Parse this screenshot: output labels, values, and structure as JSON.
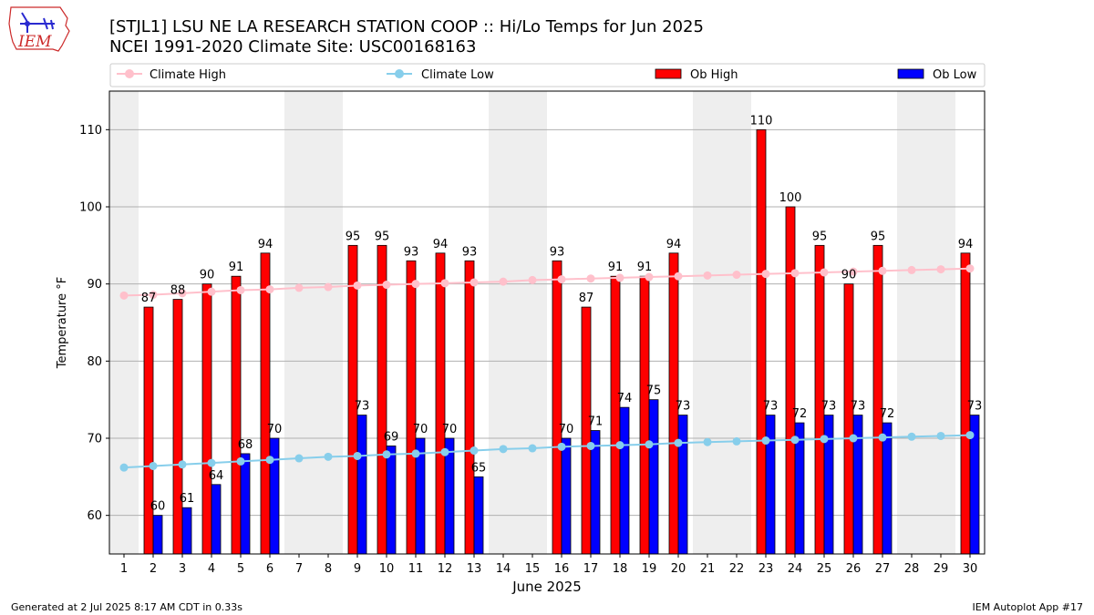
{
  "title": {
    "line1": "[STJL1] LSU NE LA RESEARCH STATION COOP :: Hi/Lo Temps for Jun 2025",
    "line2": "NCEI 1991-2020 Climate Site: USC00168163"
  },
  "logo": {
    "text": "IEM"
  },
  "footer": {
    "left": "Generated at 2 Jul 2025 8:17 AM CDT in 0.33s",
    "right": "IEM Autoplot App #17"
  },
  "colors": {
    "climate_high": "#ffc0cb",
    "climate_low": "#87ceeb",
    "ob_high": "#ff0000",
    "ob_low": "#0000ff",
    "weekend_band": "#eeeeee"
  },
  "chart_data": {
    "type": "bar",
    "xlabel": "June 2025",
    "ylabel": "Temperature °F",
    "ylim": [
      55,
      115
    ],
    "yticks": [
      60,
      70,
      80,
      90,
      100,
      110
    ],
    "grid": true,
    "legend_placement": "top",
    "categories": [
      1,
      2,
      3,
      4,
      5,
      6,
      7,
      8,
      9,
      10,
      11,
      12,
      13,
      14,
      15,
      16,
      17,
      18,
      19,
      20,
      21,
      22,
      23,
      24,
      25,
      26,
      27,
      28,
      29,
      30
    ],
    "weekend_days": [
      1,
      7,
      8,
      14,
      15,
      21,
      22,
      28,
      29
    ],
    "series": [
      {
        "name": "Climate High",
        "kind": "line",
        "values": [
          88.5,
          88.6,
          88.8,
          89.0,
          89.2,
          89.3,
          89.5,
          89.6,
          89.8,
          89.9,
          90.0,
          90.1,
          90.2,
          90.3,
          90.5,
          90.6,
          90.7,
          90.8,
          90.9,
          91.0,
          91.1,
          91.2,
          91.3,
          91.4,
          91.5,
          91.6,
          91.7,
          91.8,
          91.9,
          92.0
        ]
      },
      {
        "name": "Climate Low",
        "kind": "line",
        "values": [
          66.2,
          66.4,
          66.6,
          66.8,
          67.0,
          67.2,
          67.4,
          67.6,
          67.7,
          67.9,
          68.0,
          68.2,
          68.4,
          68.6,
          68.7,
          68.9,
          69.0,
          69.1,
          69.2,
          69.4,
          69.5,
          69.6,
          69.7,
          69.8,
          69.9,
          70.0,
          70.1,
          70.2,
          70.3,
          70.4
        ]
      },
      {
        "name": "Ob High",
        "kind": "bar",
        "values": [
          null,
          87,
          88,
          90,
          91,
          94,
          null,
          null,
          95,
          95,
          93,
          94,
          93,
          null,
          null,
          93,
          87,
          91,
          91,
          94,
          null,
          null,
          110,
          100,
          95,
          90,
          95,
          null,
          null,
          94
        ],
        "labels": [
          "",
          "87",
          "88",
          "90",
          "91",
          "94",
          "",
          "",
          "95",
          "95",
          "93",
          "94",
          "93",
          "",
          "",
          "93",
          "87",
          "91",
          "91",
          "94",
          "",
          "",
          "110",
          "100",
          "95",
          "90",
          "95",
          "",
          "",
          "94"
        ]
      },
      {
        "name": "Ob Low",
        "kind": "bar",
        "values": [
          null,
          60,
          61,
          64,
          68,
          70,
          null,
          null,
          73,
          69,
          70,
          70,
          65,
          null,
          null,
          70,
          71,
          74,
          75,
          73,
          null,
          null,
          73,
          72,
          73,
          73,
          72,
          null,
          null,
          73
        ],
        "labels": [
          "",
          "60",
          "61",
          "64",
          "68",
          "70",
          "",
          "",
          "73",
          "69",
          "70",
          "70",
          "65",
          "",
          "",
          "70",
          "71",
          "74",
          "75",
          "73",
          "",
          "",
          "73",
          "72",
          "73",
          "73",
          "72",
          "",
          "",
          "73"
        ]
      }
    ]
  }
}
